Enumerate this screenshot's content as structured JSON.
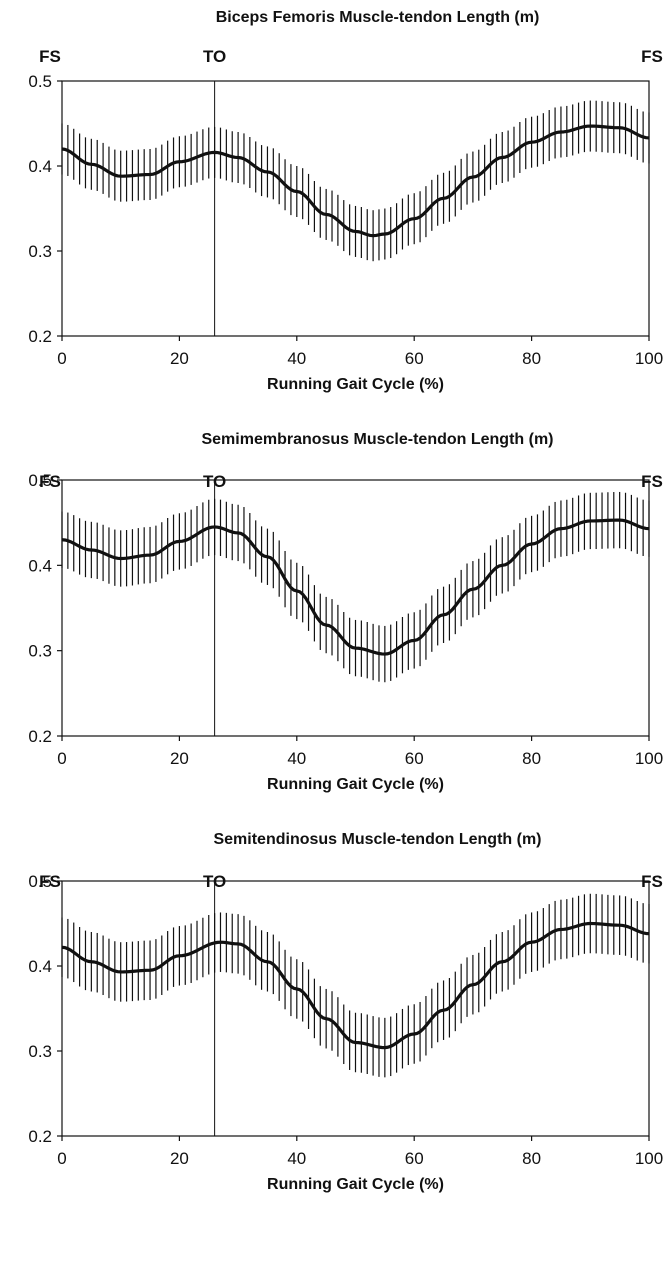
{
  "chart_data": [
    {
      "type": "line",
      "title": "Biceps Femoris Muscle-tendon Length (m)",
      "xlabel": "Running Gait Cycle (%)",
      "ylabel": "",
      "xlim": [
        0,
        100
      ],
      "ylim": [
        0.2,
        0.5
      ],
      "xticks": [
        "0",
        "20",
        "40",
        "60",
        "80",
        "100"
      ],
      "yticks": [
        "0.2",
        "0.3",
        "0.4",
        "0.5"
      ],
      "phase_markers": [
        {
          "label": "FS",
          "x": 0
        },
        {
          "label": "TO",
          "x": 26
        },
        {
          "label": "FS",
          "x": 100
        }
      ],
      "toe_off_line_x": 26,
      "error_bar_sd": 0.03,
      "series": [
        {
          "x": [
            0,
            5,
            10,
            15,
            20,
            26,
            30,
            35,
            40,
            45,
            50,
            53,
            55,
            60,
            65,
            70,
            75,
            80,
            85,
            90,
            95,
            100
          ],
          "y": [
            0.42,
            0.402,
            0.388,
            0.39,
            0.405,
            0.416,
            0.41,
            0.393,
            0.37,
            0.343,
            0.323,
            0.318,
            0.32,
            0.338,
            0.362,
            0.387,
            0.41,
            0.428,
            0.44,
            0.447,
            0.445,
            0.433
          ]
        }
      ]
    },
    {
      "type": "line",
      "title": "Semimembranosus Muscle-tendon Length (m)",
      "xlabel": "Running Gait Cycle (%)",
      "ylabel": "",
      "xlim": [
        0,
        100
      ],
      "ylim": [
        0.2,
        0.5
      ],
      "xticks": [
        "0",
        "20",
        "40",
        "60",
        "80",
        "100"
      ],
      "yticks": [
        "0.2",
        "0.3",
        "0.4",
        "0.5"
      ],
      "phase_markers": [
        {
          "label": "FS",
          "x": 0
        },
        {
          "label": "TO",
          "x": 26
        },
        {
          "label": "FS",
          "x": 100
        }
      ],
      "toe_off_line_x": 26,
      "error_bar_sd": 0.033,
      "series": [
        {
          "x": [
            0,
            5,
            10,
            15,
            20,
            26,
            30,
            35,
            40,
            45,
            50,
            55,
            60,
            65,
            70,
            75,
            80,
            85,
            90,
            95,
            100
          ],
          "y": [
            0.43,
            0.418,
            0.408,
            0.412,
            0.428,
            0.445,
            0.438,
            0.41,
            0.37,
            0.33,
            0.303,
            0.296,
            0.312,
            0.342,
            0.372,
            0.4,
            0.425,
            0.443,
            0.452,
            0.453,
            0.443
          ]
        }
      ]
    },
    {
      "type": "line",
      "title": "Semitendinosus Muscle-tendon Length (m)",
      "xlabel": "Running Gait Cycle (%)",
      "ylabel": "",
      "xlim": [
        0,
        100
      ],
      "ylim": [
        0.2,
        0.5
      ],
      "xticks": [
        "0",
        "20",
        "40",
        "60",
        "80",
        "100"
      ],
      "yticks": [
        "0.2",
        "0.3",
        "0.4",
        "0.5"
      ],
      "phase_markers": [
        {
          "label": "FS",
          "x": 0
        },
        {
          "label": "TO",
          "x": 26
        },
        {
          "label": "FS",
          "x": 100
        }
      ],
      "toe_off_line_x": 26,
      "error_bar_sd": 0.035,
      "series": [
        {
          "x": [
            0,
            5,
            10,
            15,
            20,
            27,
            30,
            35,
            40,
            45,
            50,
            55,
            60,
            65,
            70,
            75,
            80,
            85,
            90,
            95,
            100
          ],
          "y": [
            0.422,
            0.405,
            0.393,
            0.395,
            0.412,
            0.428,
            0.426,
            0.405,
            0.373,
            0.338,
            0.31,
            0.304,
            0.32,
            0.348,
            0.378,
            0.405,
            0.428,
            0.443,
            0.45,
            0.448,
            0.438
          ]
        }
      ]
    }
  ]
}
